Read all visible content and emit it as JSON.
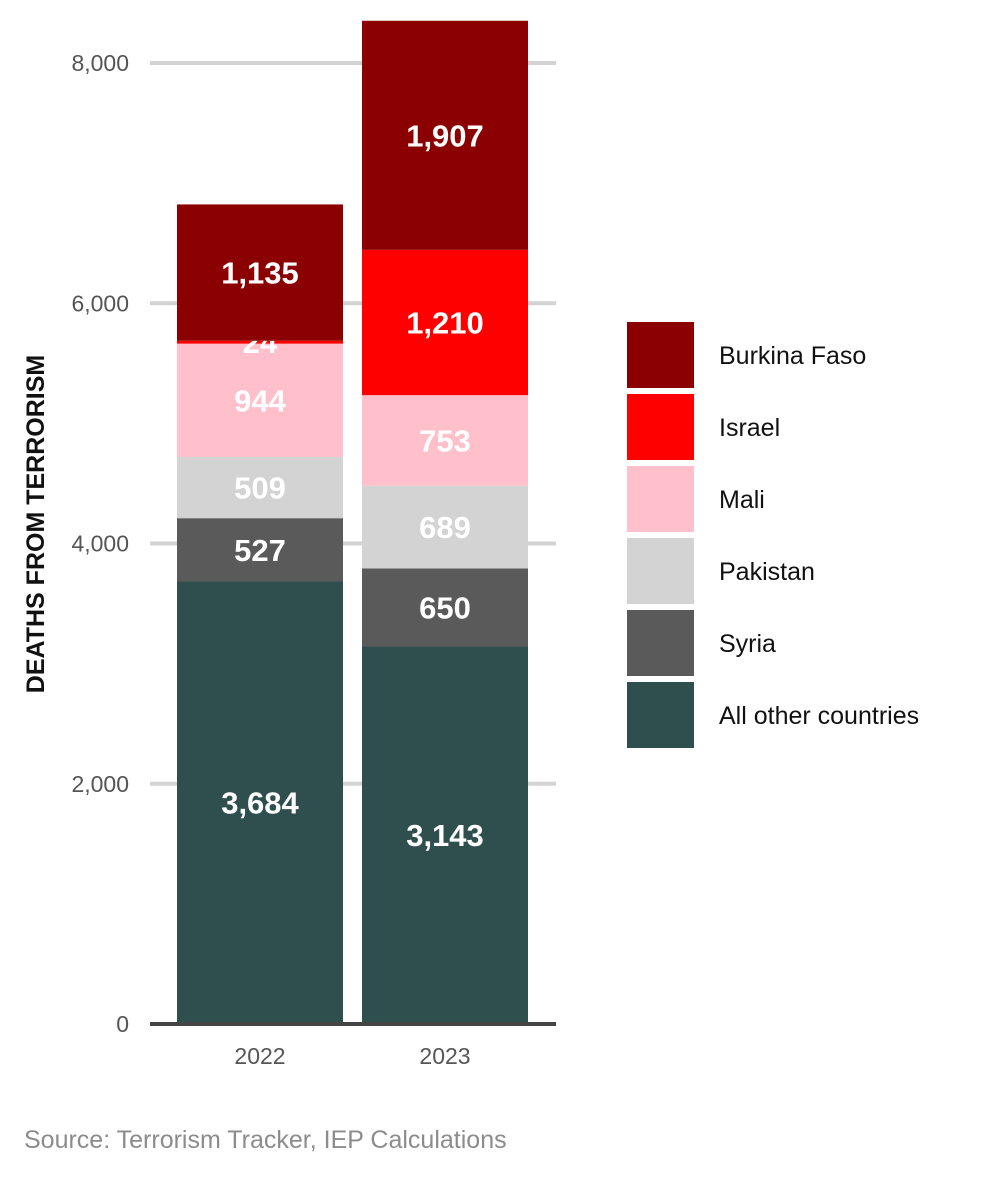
{
  "chart_data": {
    "type": "bar",
    "stacked": true,
    "categories": [
      "2022",
      "2023"
    ],
    "series": [
      {
        "name": "All other countries",
        "color": "#2f4f4f",
        "values": [
          3684,
          3143
        ]
      },
      {
        "name": "Syria",
        "color": "#5a5a5a",
        "values": [
          527,
          650
        ]
      },
      {
        "name": "Pakistan",
        "color": "#d3d3d3",
        "values": [
          509,
          689
        ]
      },
      {
        "name": "Mali",
        "color": "#ffc0cb",
        "values": [
          944,
          753
        ]
      },
      {
        "name": "Israel",
        "color": "#ff0000",
        "values": [
          24,
          1210
        ]
      },
      {
        "name": "Burkina Faso",
        "color": "#8b0000",
        "values": [
          1135,
          1907
        ]
      }
    ],
    "data_labels": [
      [
        "3,684",
        "3,143"
      ],
      [
        "527",
        "650"
      ],
      [
        "509",
        "689"
      ],
      [
        "944",
        "753"
      ],
      [
        "24",
        "1,210"
      ],
      [
        "1,135",
        "1,907"
      ]
    ],
    "ylabel": "DEATHS FROM TERRORISM",
    "xlabel": "",
    "ylim": [
      0,
      8350
    ],
    "y_ticks": [
      0,
      2000,
      4000,
      6000,
      8000
    ],
    "y_tick_labels": [
      "0",
      "2,000",
      "4,000",
      "6,000",
      "8,000"
    ],
    "grid": true,
    "legend_position": "right",
    "legend_order": [
      "Burkina Faso",
      "Israel",
      "Mali",
      "Pakistan",
      "Syria",
      "All other countries"
    ]
  },
  "source": "Source: Terrorism Tracker, IEP Calculations"
}
